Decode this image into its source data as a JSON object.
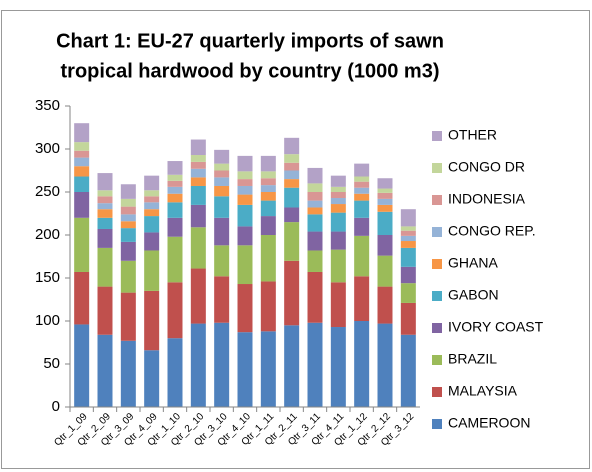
{
  "chart_data": {
    "type": "stacked_bar",
    "title": [
      "Chart 1: EU-27 quarterly imports of sawn",
      "tropical hardwood by country (1000 m3)"
    ],
    "categories": [
      "Qtr_1_09",
      "Qtr_2_09",
      "Qtr_3_09",
      "Qtr_4_09",
      "Qtr_1_10",
      "Qtr_2_10",
      "Qtr_3_10",
      "Qtr_4_10",
      "Qtr_1_11",
      "Qtr_2_11",
      "Qtr_3_11",
      "Qtr_4_11",
      "Qtr_1_12",
      "Qtr_2_12",
      "Qtr_3_12"
    ],
    "series": [
      {
        "name": "CAMEROON",
        "color": "#4f81bd",
        "values": [
          96,
          84,
          77,
          66,
          80,
          97,
          98,
          87,
          88,
          95,
          98,
          93,
          100,
          97,
          84
        ]
      },
      {
        "name": "MALAYSIA",
        "color": "#c0504d",
        "values": [
          61,
          56,
          56,
          69,
          65,
          64,
          54,
          56,
          58,
          75,
          59,
          52,
          52,
          43,
          37
        ]
      },
      {
        "name": "BRAZIL",
        "color": "#9bbb59",
        "values": [
          63,
          45,
          37,
          47,
          53,
          48,
          36,
          45,
          54,
          45,
          25,
          38,
          47,
          36,
          23
        ]
      },
      {
        "name": "IVORY COAST",
        "color": "#8064a2",
        "values": [
          30,
          22,
          22,
          21,
          22,
          26,
          32,
          22,
          22,
          17,
          22,
          21,
          21,
          24,
          19
        ]
      },
      {
        "name": "GABON",
        "color": "#4bacc6",
        "values": [
          18,
          13,
          16,
          19,
          18,
          22,
          25,
          25,
          18,
          23,
          20,
          22,
          20,
          27,
          22
        ]
      },
      {
        "name": "GHANA",
        "color": "#f79646",
        "values": [
          12,
          10,
          8,
          8,
          10,
          10,
          12,
          12,
          10,
          10,
          8,
          10,
          8,
          8,
          8
        ]
      },
      {
        "name": "CONGO REP.",
        "color": "#95b3d7",
        "values": [
          10,
          7,
          8,
          8,
          8,
          10,
          10,
          10,
          8,
          10,
          8,
          7,
          7,
          7,
          6
        ]
      },
      {
        "name": "INDONESIA",
        "color": "#d99694",
        "values": [
          8,
          8,
          9,
          7,
          7,
          8,
          8,
          8,
          8,
          9,
          10,
          7,
          7,
          7,
          6
        ]
      },
      {
        "name": "CONGO DR",
        "color": "#c3d69b",
        "values": [
          10,
          7,
          9,
          7,
          7,
          8,
          8,
          9,
          8,
          10,
          10,
          6,
          6,
          5,
          5
        ]
      },
      {
        "name": "OTHER",
        "color": "#b3a2c7",
        "values": [
          22,
          20,
          17,
          17,
          16,
          18,
          16,
          18,
          18,
          19,
          18,
          13,
          15,
          12,
          20
        ]
      }
    ],
    "ylim": [
      0,
      350
    ],
    "yticks": [
      0,
      50,
      100,
      150,
      200,
      250,
      300,
      350
    ],
    "grid": false,
    "legend": "right"
  }
}
